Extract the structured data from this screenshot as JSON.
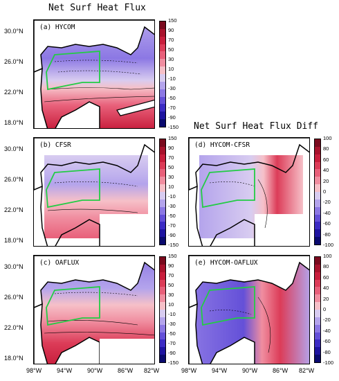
{
  "titles": {
    "left": "Net Surf Heat Flux",
    "right": "Net Surf Heat Flux Diff"
  },
  "lat_labels": [
    "30.0°N",
    "26.0°N",
    "22.0°N",
    "18.0°N"
  ],
  "lon_labels": [
    "98°W",
    "94°W",
    "90°W",
    "86°W",
    "82°W"
  ],
  "colorbar_flux": {
    "ticks": [
      "150",
      "90",
      "50",
      "30",
      "-10",
      "-30",
      "-50",
      "-70",
      "-90",
      "-150"
    ],
    "ticks_full": [
      "150",
      "90",
      "70",
      "50",
      "30",
      "10",
      "-10",
      "-30",
      "-50",
      "-70",
      "-90",
      "-150"
    ],
    "colors": [
      "#7a0a1e",
      "#a8122c",
      "#c81e3c",
      "#dc3c58",
      "#e8607a",
      "#f08ea0",
      "#f6c0c8",
      "#d8ccf0",
      "#b4a4ec",
      "#8c78e4",
      "#6450d8",
      "#3c2cc4",
      "#1e14a0",
      "#0a0a6e"
    ]
  },
  "colorbar_diff": {
    "ticks": [
      "100",
      "80",
      "60",
      "40",
      "20",
      "0",
      "-20",
      "-40",
      "-60",
      "-80",
      "-100"
    ],
    "colors": [
      "#7a0a1e",
      "#a8122c",
      "#c81e3c",
      "#dc3c58",
      "#e8607a",
      "#f08ea0",
      "#f6c0c8",
      "#d8ccf0",
      "#b4a4ec",
      "#8c78e4",
      "#6450d8",
      "#3c2cc4",
      "#1e14a0",
      "#0a0a6e"
    ]
  },
  "panels": {
    "a": {
      "label": "(a) HYCOM"
    },
    "b": {
      "label": "(b) CFSR"
    },
    "c": {
      "label": "(c) OAFLUX"
    },
    "d": {
      "label": "(d) HYCOM-CFSR"
    },
    "e": {
      "label": "(e) HYCOM-OAFLUX"
    }
  },
  "colors": {
    "box_outline": "#22cc44",
    "coast": "#000000"
  }
}
